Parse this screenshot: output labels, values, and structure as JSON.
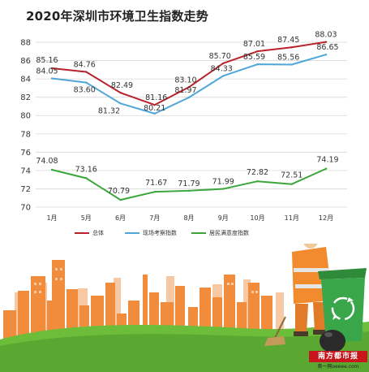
{
  "title": "2020年深圳市环境卫生指数走势",
  "colors": {
    "red": "#b8232b",
    "blue": "#4fa6d8",
    "green": "#3aa63a",
    "grid": "#d9d9d9",
    "axis_text": "#333333"
  },
  "legend": {
    "items": [
      {
        "label": "总体",
        "color": "#b8232b"
      },
      {
        "label": "现场考察指数",
        "color": "#4fa6d8"
      },
      {
        "label": "居民满意度指数",
        "color": "#3aa63a"
      }
    ]
  },
  "chart_data": {
    "type": "line",
    "title": "2020年深圳市环境卫生指数走势",
    "categories": [
      "1月",
      "5月",
      "6月",
      "7月",
      "8月",
      "9月",
      "10月",
      "11月",
      "12月"
    ],
    "yticks": [
      70,
      72,
      74,
      76,
      78,
      80,
      82,
      84,
      86,
      88
    ],
    "ylim": [
      70,
      88.5
    ],
    "grid": true,
    "legend_position": "bottom",
    "series": [
      {
        "name": "总体",
        "color": "#b8232b",
        "values": [
          85.16,
          84.76,
          82.49,
          81.16,
          83.1,
          85.7,
          87.01,
          87.45,
          88.03
        ]
      },
      {
        "name": "现场考察指数",
        "color": "#4fa6d8",
        "values": [
          84.05,
          83.6,
          81.32,
          80.21,
          81.97,
          84.33,
          85.59,
          85.56,
          86.65
        ]
      },
      {
        "name": "居民满意度指数",
        "color": "#3aa63a",
        "values": [
          74.08,
          73.16,
          70.79,
          71.67,
          71.79,
          71.99,
          72.82,
          72.51,
          74.19
        ]
      }
    ],
    "data_labels": {
      "总体": [
        "85.16",
        "84.76",
        "82.49",
        "81.16",
        "83.10",
        "85.70",
        "87.01",
        "87.45",
        "88.03"
      ],
      "现场考察指数": [
        "84.05",
        "83.60",
        "81.32",
        "80.21",
        "81.97",
        "84.33",
        "85.59",
        "85.56",
        "86.65"
      ],
      "居民满意度指数": [
        "74.08",
        "73.16",
        "70.79",
        "71.67",
        "71.79",
        "71.99",
        "72.82",
        "72.51",
        "74.19"
      ]
    }
  },
  "brand": {
    "name": "南方都市报",
    "sub": "奥一网oeeee.com"
  },
  "illustration": {
    "bin_icon": "recycling-icon"
  }
}
